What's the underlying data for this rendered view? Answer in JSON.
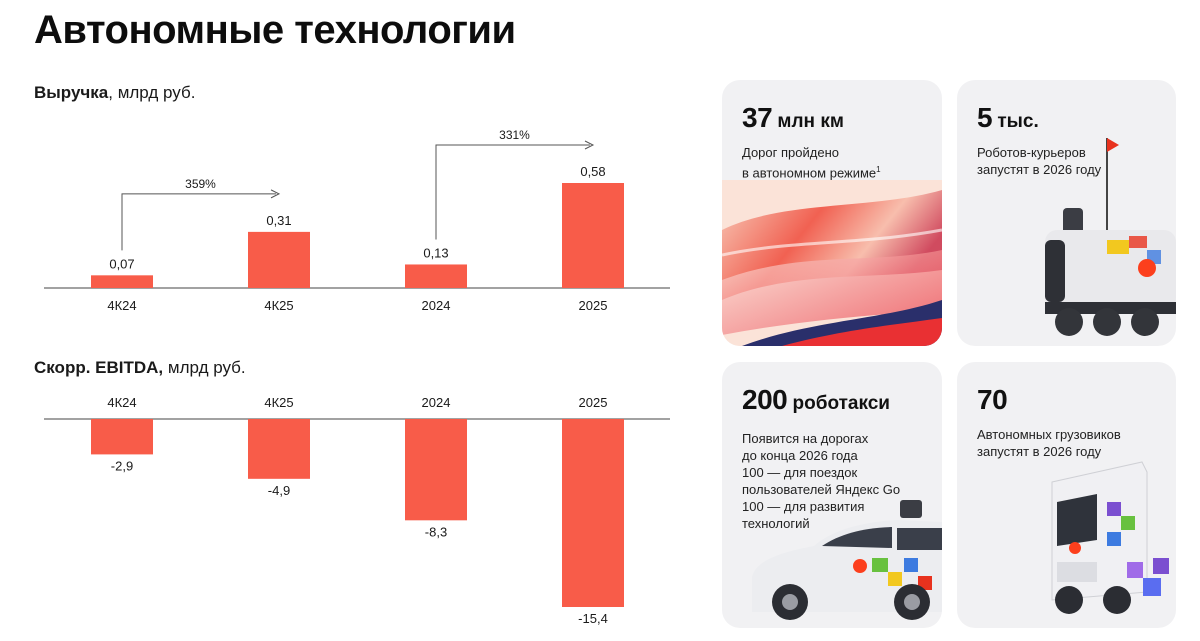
{
  "page": {
    "title": "Автономные технологии"
  },
  "revenue_heading": {
    "bold": "Выручка",
    "rest": ", млрд руб."
  },
  "ebitda_heading": {
    "bold": "Скорр. EBITDA,",
    "rest": " млрд руб."
  },
  "chart_data": [
    {
      "type": "bar",
      "title": "Выручка, млрд руб.",
      "categories": [
        "4К24",
        "4К25",
        "2024",
        "2025"
      ],
      "values": [
        0.07,
        0.31,
        0.13,
        0.58
      ],
      "value_labels": [
        "0,07",
        "0,31",
        "0,13",
        "0,58"
      ],
      "annotations": [
        {
          "from": "4К24",
          "to": "4К25",
          "text": "359%"
        },
        {
          "from": "2024",
          "to": "2025",
          "text": "331%"
        }
      ],
      "ylim": [
        0,
        0.6
      ],
      "grid": false,
      "color": "#f85c49"
    },
    {
      "type": "bar",
      "title": "Скорр. EBITDA, млрд руб.",
      "categories": [
        "4К24",
        "4К25",
        "2024",
        "2025"
      ],
      "values": [
        -2.9,
        -4.9,
        -8.3,
        -15.4
      ],
      "value_labels": [
        "-2,9",
        "-4,9",
        "-8,3",
        "-15,4"
      ],
      "ylim": [
        -16,
        0
      ],
      "grid": false,
      "color": "#f85c49"
    }
  ],
  "cards": {
    "km": {
      "number": "37",
      "unit": " млн км",
      "text1": "Дорог пройдено",
      "text2": "в автономном режиме",
      "footnote": "1"
    },
    "couriers": {
      "number": "5",
      "unit": " тыс.",
      "text1": "Роботов-курьеров",
      "text2": "запустят в 2026 году"
    },
    "robotaxi": {
      "number": "200",
      "unit": " роботакси",
      "lines": [
        "Появится на дорогах",
        "до конца 2026 года",
        "100 — для поездок",
        "пользователей Яндекс Go",
        "100 — для развития",
        "технологий"
      ]
    },
    "trucks": {
      "number": "70",
      "text1": "Автономных грузовиков",
      "text2": "запустят в 2026 году"
    }
  },
  "colors": {
    "accent": "#f85c49",
    "card_bg": "#f1f1f3",
    "logo_red": "#fc3f1d"
  },
  "icons": [
    "road-photo",
    "courier-robot-icon",
    "robotaxi-car-icon",
    "autonomous-truck-icon"
  ]
}
